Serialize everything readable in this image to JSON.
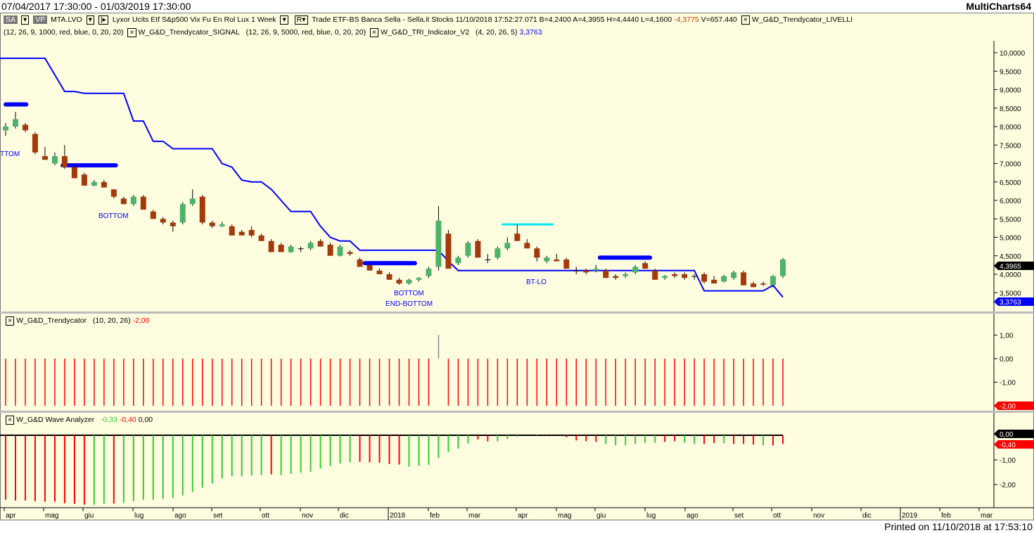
{
  "window": {
    "title_left": "07/04/2017 17:30:00 - 01/03/2019 17:30:00",
    "title_right": "MultiCharts64"
  },
  "info": {
    "btn_sa": "SA",
    "btn_vp": "VP",
    "symbol": "MTA.LVO",
    "description": "Lyxor Ucits Etf S&p500 Vix Fu En Rol Lux",
    "resolution": "1 Week",
    "r_btn": "R",
    "quote": "Trade  ETF-BS  Banca Sella - Sella.it  Stocks  11/10/2018  17:52:27.071  B=4,2400  A=4,3955  H=4,4440  L=4,1600",
    "change": "-4,3775",
    "volume": "V=657.440",
    "ind1": "W_G&D_Trendycator_LIVELLI",
    "ind1_params": "(12, 26, 9, 1000, red, blue, 0, 20, 20)",
    "ind2": "W_G&D_Trendycator_SIGNAL",
    "ind2_params": "(12, 26, 9, 5000, red, blue, 0, 20, 20)",
    "ind3": "W_G&D_TRI_Indicator_V2",
    "ind3_params": "(4, 20, 26, 5)",
    "ind3_value": "3,3763"
  },
  "price_axis": {
    "ticks": [
      "10,0000",
      "9,5000",
      "9,0000",
      "8,5000",
      "8,0000",
      "7,5000",
      "7,0000",
      "6,5000",
      "6,0000",
      "5,5000",
      "5,0000",
      "4,5000",
      "4,0000",
      "3,5000"
    ],
    "last_price": "4,3965",
    "indicator_value": "3,3763"
  },
  "labels": {
    "l1": "TTOM",
    "l2": "BOTTOM",
    "l3": "BOTTOM",
    "l4": "END-BOTTOM",
    "l5": "BT-LO"
  },
  "trendycator": {
    "name": "W_G&D_Trendycator",
    "params": "(10, 20, 26)",
    "value": "-2,00",
    "ticks": [
      "1,00",
      "0,00",
      "-1,00"
    ],
    "badge": "-2,00"
  },
  "wave": {
    "name": "W_G&D Wave Analyzer",
    "v1": "-0,33",
    "v2": "-0,40",
    "v3": "0,00",
    "ticks": [
      "-1,00",
      "-2,00"
    ],
    "badge1": "0,00",
    "badge2": "-0,40"
  },
  "xaxis": [
    "apr",
    "mag",
    "giu",
    "lug",
    "ago",
    "set",
    "ott",
    "nov",
    "dic",
    "2018",
    "feb",
    "mar",
    "apr",
    "mag",
    "giu",
    "lug",
    "ago",
    "set",
    "ott",
    "nov",
    "dic",
    "2019",
    "feb",
    "mar"
  ],
  "footer": "Printed on 11/10/2018 at 17:53:10",
  "colors": {
    "up": "#4db36b",
    "down": "#a33a0b",
    "line": "#0000ff",
    "cyan": "#00e5ee",
    "red": "#ff0000",
    "green": "#33cc33"
  },
  "chart_data": {
    "type": "candlestick",
    "ohlc": [
      [
        7.9,
        8.1,
        7.75,
        8.0
      ],
      [
        8.0,
        8.4,
        7.95,
        8.2
      ],
      [
        8.05,
        8.1,
        7.85,
        7.9
      ],
      [
        7.8,
        7.85,
        7.25,
        7.3
      ],
      [
        7.2,
        7.45,
        7.1,
        7.1
      ],
      [
        7.0,
        7.3,
        6.95,
        7.2
      ],
      [
        7.2,
        7.5,
        6.85,
        6.9
      ],
      [
        6.9,
        6.95,
        6.6,
        6.6
      ],
      [
        6.7,
        6.75,
        6.4,
        6.4
      ],
      [
        6.4,
        6.55,
        6.38,
        6.5
      ],
      [
        6.5,
        6.55,
        6.35,
        6.35
      ],
      [
        6.3,
        6.3,
        6.05,
        6.1
      ],
      [
        6.05,
        6.1,
        5.9,
        5.9
      ],
      [
        5.9,
        6.15,
        5.85,
        6.1
      ],
      [
        6.1,
        6.15,
        5.75,
        5.75
      ],
      [
        5.7,
        5.75,
        5.5,
        5.5
      ],
      [
        5.5,
        5.55,
        5.35,
        5.4
      ],
      [
        5.4,
        5.45,
        5.15,
        5.3
      ],
      [
        5.4,
        5.95,
        5.35,
        5.9
      ],
      [
        5.9,
        6.3,
        5.85,
        6.05
      ],
      [
        6.1,
        6.15,
        5.35,
        5.4
      ],
      [
        5.4,
        5.45,
        5.25,
        5.3
      ],
      [
        5.3,
        5.42,
        5.28,
        5.35
      ],
      [
        5.3,
        5.35,
        5.05,
        5.05
      ],
      [
        5.15,
        5.2,
        5.05,
        5.05
      ],
      [
        5.2,
        5.3,
        5.0,
        5.05
      ],
      [
        5.05,
        5.1,
        4.9,
        4.9
      ],
      [
        4.9,
        4.95,
        4.6,
        4.6
      ],
      [
        4.8,
        4.85,
        4.6,
        4.6
      ],
      [
        4.6,
        4.8,
        4.58,
        4.75
      ],
      [
        4.7,
        4.75,
        4.6,
        4.7
      ],
      [
        4.7,
        4.9,
        4.65,
        4.85
      ],
      [
        4.9,
        4.95,
        4.75,
        4.75
      ],
      [
        4.8,
        4.85,
        4.5,
        4.5
      ],
      [
        4.5,
        4.8,
        4.48,
        4.75
      ],
      [
        4.6,
        4.65,
        4.5,
        4.55
      ],
      [
        4.4,
        4.45,
        4.2,
        4.2
      ],
      [
        4.25,
        4.3,
        4.1,
        4.1
      ],
      [
        4.1,
        4.15,
        4.0,
        4.0
      ],
      [
        4.0,
        4.05,
        3.85,
        3.85
      ],
      [
        3.85,
        3.9,
        3.72,
        3.75
      ],
      [
        3.75,
        3.88,
        3.72,
        3.85
      ],
      [
        3.85,
        3.92,
        3.8,
        3.9
      ],
      [
        3.95,
        4.2,
        3.9,
        4.15
      ],
      [
        4.2,
        5.85,
        4.1,
        5.45
      ],
      [
        5.1,
        5.2,
        4.15,
        4.15
      ],
      [
        4.3,
        4.5,
        4.25,
        4.45
      ],
      [
        4.5,
        4.9,
        4.45,
        4.85
      ],
      [
        4.9,
        4.95,
        4.45,
        4.45
      ],
      [
        4.4,
        4.55,
        4.3,
        4.4
      ],
      [
        4.45,
        4.75,
        4.4,
        4.7
      ],
      [
        4.7,
        5.0,
        4.65,
        4.85
      ],
      [
        5.1,
        5.35,
        4.9,
        4.9
      ],
      [
        4.85,
        4.95,
        4.7,
        4.7
      ],
      [
        4.7,
        4.75,
        4.35,
        4.45
      ],
      [
        4.35,
        4.5,
        4.3,
        4.45
      ],
      [
        4.4,
        4.55,
        4.35,
        4.35
      ],
      [
        4.4,
        4.45,
        4.15,
        4.15
      ],
      [
        4.1,
        4.2,
        4.0,
        4.1
      ],
      [
        4.1,
        4.15,
        4.0,
        4.05
      ],
      [
        4.1,
        4.25,
        4.05,
        4.15
      ],
      [
        4.1,
        4.15,
        3.9,
        3.9
      ],
      [
        3.95,
        4.0,
        3.85,
        3.9
      ],
      [
        3.95,
        4.05,
        3.9,
        4.0
      ],
      [
        4.05,
        4.25,
        4.0,
        4.2
      ],
      [
        4.3,
        4.35,
        4.15,
        4.15
      ],
      [
        4.1,
        4.15,
        3.85,
        3.85
      ],
      [
        3.9,
        3.98,
        3.85,
        3.95
      ],
      [
        4.0,
        4.05,
        3.9,
        3.95
      ],
      [
        4.0,
        4.05,
        3.85,
        3.9
      ],
      [
        3.95,
        4.0,
        3.85,
        3.95
      ],
      [
        4.0,
        4.05,
        3.75,
        3.8
      ],
      [
        3.85,
        3.95,
        3.75,
        3.75
      ],
      [
        3.8,
        3.98,
        3.78,
        3.95
      ],
      [
        3.9,
        4.1,
        3.85,
        4.05
      ],
      [
        4.05,
        4.1,
        3.7,
        3.7
      ],
      [
        3.75,
        3.8,
        3.65,
        3.65
      ],
      [
        3.75,
        3.8,
        3.68,
        3.72
      ],
      [
        3.7,
        3.98,
        3.65,
        3.95
      ],
      [
        3.95,
        4.44,
        3.9,
        4.4
      ]
    ],
    "trend_line": [
      9.85,
      9.85,
      9.85,
      9.85,
      9.85,
      9.4,
      8.95,
      8.95,
      8.9,
      8.9,
      8.9,
      8.9,
      8.9,
      8.15,
      8.15,
      7.6,
      7.6,
      7.4,
      7.4,
      7.4,
      7.4,
      7.4,
      7.0,
      6.9,
      6.55,
      6.5,
      6.5,
      6.3,
      6.0,
      5.7,
      5.7,
      5.7,
      5.3,
      5.0,
      4.9,
      4.9,
      4.65,
      4.65,
      4.65,
      4.65,
      4.65,
      4.65,
      4.65,
      4.65,
      4.65,
      4.35,
      4.1,
      4.1,
      4.1,
      4.1,
      4.1,
      4.1,
      4.1,
      4.1,
      4.1,
      4.1,
      4.1,
      4.1,
      4.1,
      4.1,
      4.1,
      4.1,
      4.1,
      4.1,
      4.1,
      4.1,
      4.1,
      4.1,
      4.1,
      4.1,
      4.1,
      3.55,
      3.55,
      3.55,
      3.55,
      3.55,
      3.55,
      3.55,
      3.7,
      3.38
    ],
    "levels": [
      {
        "from": 0,
        "to": 2.1,
        "value": 8.6,
        "color": "blue"
      },
      {
        "from": 5.8,
        "to": 11.2,
        "value": 6.95,
        "color": "blue"
      },
      {
        "from": 36.5,
        "to": 41.6,
        "value": 4.3,
        "color": "blue"
      },
      {
        "from": 50.5,
        "to": 55.6,
        "value": 5.35,
        "color": "cyan"
      },
      {
        "from": 60.4,
        "to": 65.5,
        "value": 4.45,
        "color": "blue"
      }
    ],
    "trendycator_values": {
      "default": -2,
      "spike_index": 44,
      "spike_value": 1
    },
    "wave_values": [
      -2.62,
      -2.65,
      -2.65,
      -2.68,
      -2.7,
      -2.7,
      -2.76,
      -2.79,
      -2.82,
      -2.82,
      -2.78,
      -2.78,
      -2.75,
      -2.68,
      -2.62,
      -2.62,
      -2.59,
      -2.55,
      -2.44,
      -2.3,
      -2.13,
      -1.95,
      -1.76,
      -1.67,
      -1.67,
      -1.64,
      -1.62,
      -1.59,
      -1.62,
      -1.57,
      -1.52,
      -1.48,
      -1.36,
      -1.25,
      -1.15,
      -1.1,
      -1.08,
      -1.1,
      -1.12,
      -1.17,
      -1.19,
      -1.27,
      -1.24,
      -1.2,
      -0.93,
      -0.69,
      -0.54,
      -0.32,
      -0.17,
      -0.25,
      -0.25,
      -0.15,
      -0.05,
      0,
      0.02,
      0.02,
      0,
      -0.08,
      -0.21,
      -0.24,
      -0.27,
      -0.35,
      -0.41,
      -0.41,
      -0.35,
      -0.31,
      -0.3,
      -0.27,
      -0.24,
      -0.3,
      -0.35,
      -0.35,
      -0.32,
      -0.32,
      -0.35,
      -0.35,
      -0.38,
      -0.41,
      -0.41,
      -0.35
    ],
    "wave_colors": "rrrrrrrrrggrgggggggggggggggrggggggggrrrrrgggggggrrgggggrrrrrrggggggrrggrrgrrrg"
  }
}
